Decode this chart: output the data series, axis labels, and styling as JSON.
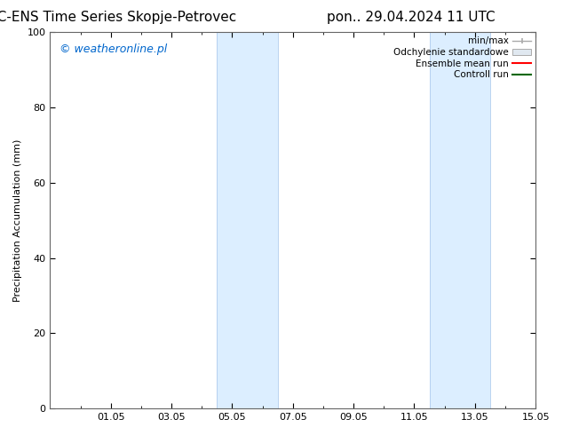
{
  "title_left": "CMC-ENS Time Series Skopje-Petrovec",
  "title_right": "pon.. 29.04.2024 11 UTC",
  "ylabel": "Precipitation Accumulation (mm)",
  "watermark": "© weatheronline.pl",
  "watermark_color": "#0066cc",
  "ylim": [
    0,
    100
  ],
  "yticks": [
    0,
    20,
    40,
    60,
    80,
    100
  ],
  "x_min": 0,
  "x_max": 16,
  "xtick_labels": [
    "01.05",
    "03.05",
    "05.05",
    "07.05",
    "09.05",
    "11.05",
    "13.05",
    "15.05"
  ],
  "xtick_positions": [
    2,
    4,
    6,
    8,
    10,
    12,
    14,
    16
  ],
  "shaded_regions": [
    {
      "start": 5.5,
      "end": 7.5
    },
    {
      "start": 12.5,
      "end": 14.5
    }
  ],
  "shaded_color": "#dceeff",
  "shaded_edge_color": "#b0ccee",
  "background_color": "#ffffff",
  "legend_labels": [
    "min/max",
    "Odchylenie standardowe",
    "Ensemble mean run",
    "Controll run"
  ],
  "legend_colors": [
    "#aaaaaa",
    "#cccccc",
    "#ff0000",
    "#006600"
  ],
  "title_fontsize": 11,
  "tick_fontsize": 8,
  "label_fontsize": 8,
  "watermark_fontsize": 9,
  "legend_fontsize": 7.5
}
